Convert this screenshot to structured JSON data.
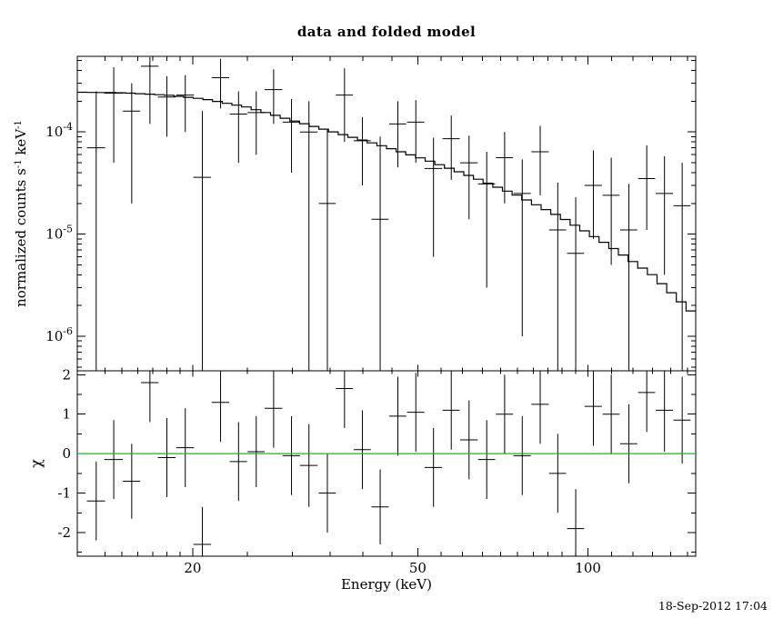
{
  "window": {
    "background": "#ffffff"
  },
  "chart_data": {
    "type": "scatter",
    "subtype": "xspec-spectrum-with-residuals",
    "title": "data and folded model",
    "xlabel": "Energy (keV)",
    "timestamp": "18-Sep-2012 17:04",
    "x_scale": "log",
    "x_range": [
      12.5,
      155
    ],
    "x_ticks": [
      20,
      50,
      100
    ],
    "x_minor_ticks": [
      14,
      15,
      16,
      17,
      18,
      19,
      25,
      30,
      35,
      40,
      45,
      55,
      60,
      65,
      70,
      75,
      80,
      85,
      90,
      95,
      110,
      120,
      130,
      140,
      150
    ],
    "colors": {
      "data": "#000000",
      "model": "#000000",
      "zero_line": "#00c800",
      "frame": "#000000"
    },
    "top_panel": {
      "ylabel_parts": [
        "normalized counts s",
        "-1",
        " keV",
        "-1"
      ],
      "y_scale": "log",
      "y_range": [
        4.6e-07,
        0.00055
      ],
      "y_ticks": [
        0.0001,
        1e-05,
        1e-06
      ],
      "model_steps": 64,
      "model": {
        "e": [
          12.5,
          15,
          18,
          21,
          25,
          30,
          36,
          43,
          52,
          62,
          75,
          90,
          108,
          130,
          155
        ],
        "v": [
          0.000245,
          0.000242,
          0.00023,
          0.00021,
          0.000175,
          0.00013,
          9.8e-05,
          7.4e-05,
          5.3e-05,
          3.7e-05,
          2.4e-05,
          1.45e-05,
          8e-06,
          4e-06,
          1.6e-06
        ]
      }
    },
    "bottom_panel": {
      "ylabel": "χ",
      "y_scale": "linear",
      "y_range": [
        -2.6,
        2.1
      ],
      "y_ticks": [
        2,
        1,
        0,
        -1,
        -2
      ],
      "y_minor_ticks": [
        1.5,
        0.5,
        -0.5,
        -1.5,
        -2.5
      ],
      "zero_line": 0
    },
    "points_format": [
      "e_keV",
      "de_keV",
      "rate",
      "rate_lo",
      "rate_hi",
      "chi",
      "chi_err"
    ],
    "points": [
      [
        13.5,
        0.5,
        7e-05,
        0,
        0.00025,
        -1.2,
        1.0
      ],
      [
        14.5,
        0.55,
        0.00024,
        5e-05,
        0.00043,
        -0.15,
        1.0
      ],
      [
        15.6,
        0.55,
        0.00016,
        2e-05,
        0.0003,
        -0.7,
        0.95
      ],
      [
        16.8,
        0.6,
        0.00044,
        0.00012,
        0.00054,
        1.8,
        1.0
      ],
      [
        18.0,
        0.65,
        0.00022,
        9e-05,
        0.00035,
        -0.1,
        1.0
      ],
      [
        19.4,
        0.7,
        0.00023,
        0.0001,
        0.00036,
        0.15,
        1.0
      ],
      [
        20.8,
        0.75,
        3.6e-05,
        0,
        0.00016,
        -2.3,
        0.95
      ],
      [
        22.4,
        0.8,
        0.00034,
        0.00017,
        0.00052,
        1.3,
        1.0
      ],
      [
        24.1,
        0.85,
        0.00015,
        5e-05,
        0.00025,
        -0.2,
        1.0
      ],
      [
        25.9,
        0.9,
        0.000155,
        6e-05,
        0.00025,
        0.05,
        0.9
      ],
      [
        27.8,
        1.0,
        0.00026,
        0.00012,
        0.00041,
        1.15,
        1.0
      ],
      [
        29.9,
        1.05,
        0.000125,
        4e-05,
        0.00021,
        -0.05,
        1.0
      ],
      [
        32.1,
        1.15,
        0.0001,
        0,
        0.0002,
        -0.3,
        1.05
      ],
      [
        34.6,
        1.2,
        2e-05,
        0,
        0.000105,
        -1.0,
        1.0
      ],
      [
        37.1,
        1.3,
        0.00023,
        8e-05,
        0.00042,
        1.65,
        1.0
      ],
      [
        39.9,
        1.4,
        8.2e-05,
        3e-05,
        0.00014,
        0.1,
        1.0
      ],
      [
        42.9,
        1.5,
        1.4e-05,
        0,
        9e-05,
        -1.35,
        0.95
      ],
      [
        46.1,
        1.6,
        0.00012,
        4.5e-05,
        0.0002,
        0.95,
        1.0
      ],
      [
        49.6,
        1.75,
        0.000125,
        5e-05,
        0.000205,
        1.05,
        1.0
      ],
      [
        53.3,
        1.9,
        4.4e-05,
        6e-06,
        8.8e-05,
        -0.35,
        1.0
      ],
      [
        57.3,
        2.0,
        8.6e-05,
        3.4e-05,
        0.000145,
        1.1,
        1.0
      ],
      [
        61.6,
        2.2,
        5e-05,
        1.4e-05,
        9.2e-05,
        0.35,
        1.0
      ],
      [
        66.2,
        2.3,
        3.1e-05,
        3e-06,
        6.4e-05,
        -0.15,
        1.0
      ],
      [
        71.2,
        2.5,
        5.6e-05,
        2e-05,
        0.0001,
        1.0,
        1.0
      ],
      [
        76.5,
        2.7,
        2.5e-05,
        1e-06,
        5.4e-05,
        -0.05,
        1.0
      ],
      [
        82.3,
        2.9,
        6.4e-05,
        2.4e-05,
        0.000115,
        1.25,
        1.0
      ],
      [
        88.4,
        3.1,
        1.1e-05,
        0,
        3.2e-05,
        -0.5,
        1.0
      ],
      [
        95.1,
        3.3,
        6.5e-06,
        0,
        2.3e-05,
        -1.9,
        1.0
      ],
      [
        102.2,
        3.6,
        3e-05,
        9e-06,
        6.6e-05,
        1.2,
        1.0
      ],
      [
        109.9,
        3.8,
        2.4e-05,
        5e-06,
        5.6e-05,
        1.0,
        1.0
      ],
      [
        118.1,
        4.1,
        1.1e-05,
        0,
        3.1e-05,
        0.25,
        1.0
      ],
      [
        127.0,
        4.4,
        3.5e-05,
        1.1e-05,
        7.4e-05,
        1.55,
        1.0
      ],
      [
        136.5,
        4.8,
        2.5e-05,
        4e-06,
        5.8e-05,
        1.1,
        1.05
      ],
      [
        146.7,
        5.1,
        1.9e-05,
        0,
        5e-05,
        0.85,
        1.1
      ]
    ]
  }
}
